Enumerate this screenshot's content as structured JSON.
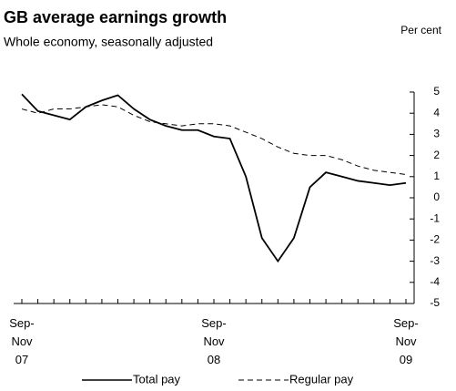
{
  "chart_data": {
    "type": "line",
    "title": "GB average earnings growth",
    "subtitle": "Whole economy, seasonally adjusted",
    "y_label": "Per cent",
    "categories": [
      "Sep-\nNov\n07",
      null,
      null,
      null,
      null,
      null,
      null,
      null,
      null,
      null,
      null,
      null,
      "Sep-\nNov\n08",
      null,
      null,
      null,
      null,
      null,
      null,
      null,
      null,
      null,
      null,
      null,
      "Sep-\nNov\n09"
    ],
    "series": [
      {
        "name": "Total pay",
        "color": "#000000",
        "dash": false,
        "values": [
          4.9,
          4.1,
          3.9,
          3.7,
          4.3,
          4.6,
          4.85,
          4.2,
          3.7,
          3.4,
          3.2,
          3.2,
          2.9,
          2.8,
          1.0,
          -1.9,
          -3.0,
          -1.9,
          0.5,
          1.2,
          1.0,
          0.8,
          0.7,
          0.6,
          0.7
        ]
      },
      {
        "name": "Regular pay",
        "color": "#000000",
        "dash": true,
        "values": [
          4.2,
          4.0,
          4.2,
          4.2,
          4.3,
          4.4,
          4.3,
          3.9,
          3.6,
          3.5,
          3.4,
          3.5,
          3.5,
          3.4,
          3.1,
          2.8,
          2.4,
          2.1,
          2.0,
          2.0,
          1.8,
          1.5,
          1.3,
          1.2,
          1.1
        ]
      }
    ],
    "ylim": [
      -5,
      5
    ],
    "yticks": [
      -5,
      -4,
      -3,
      -2,
      -1,
      0,
      1,
      2,
      3,
      4,
      5
    ]
  }
}
